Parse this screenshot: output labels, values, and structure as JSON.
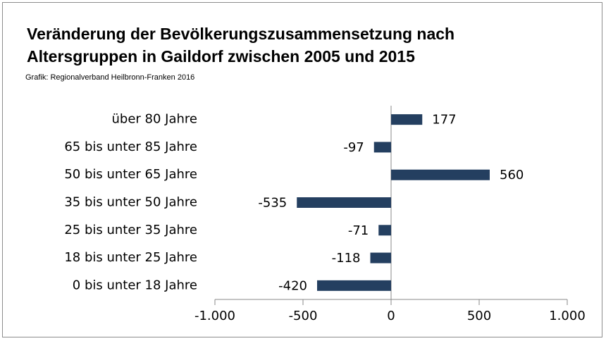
{
  "chart_data": {
    "type": "bar",
    "orientation": "horizontal",
    "title": "Veränderung der Bevölkerungszusammensetzung nach Altersgruppen in Gaildorf zwischen 2005 und 2015",
    "subtitle": "Grafik: Regionalverband Heilbronn-Franken 2016",
    "categories": [
      "über 80 Jahre",
      "65 bis unter 85 Jahre",
      "50 bis unter 65 Jahre",
      "35 bis unter 50 Jahre",
      "25 bis unter 35 Jahre",
      "18 bis unter 25 Jahre",
      "0 bis unter 18 Jahre"
    ],
    "values": [
      177,
      -97,
      560,
      -535,
      -71,
      -118,
      -420
    ],
    "color": "#243f60",
    "xlim": [
      -1000,
      1000
    ],
    "xticks": [
      {
        "value": -1000,
        "label": "-1.000"
      },
      -500,
      0,
      500,
      {
        "value": 1000,
        "label": "1.000"
      }
    ]
  }
}
